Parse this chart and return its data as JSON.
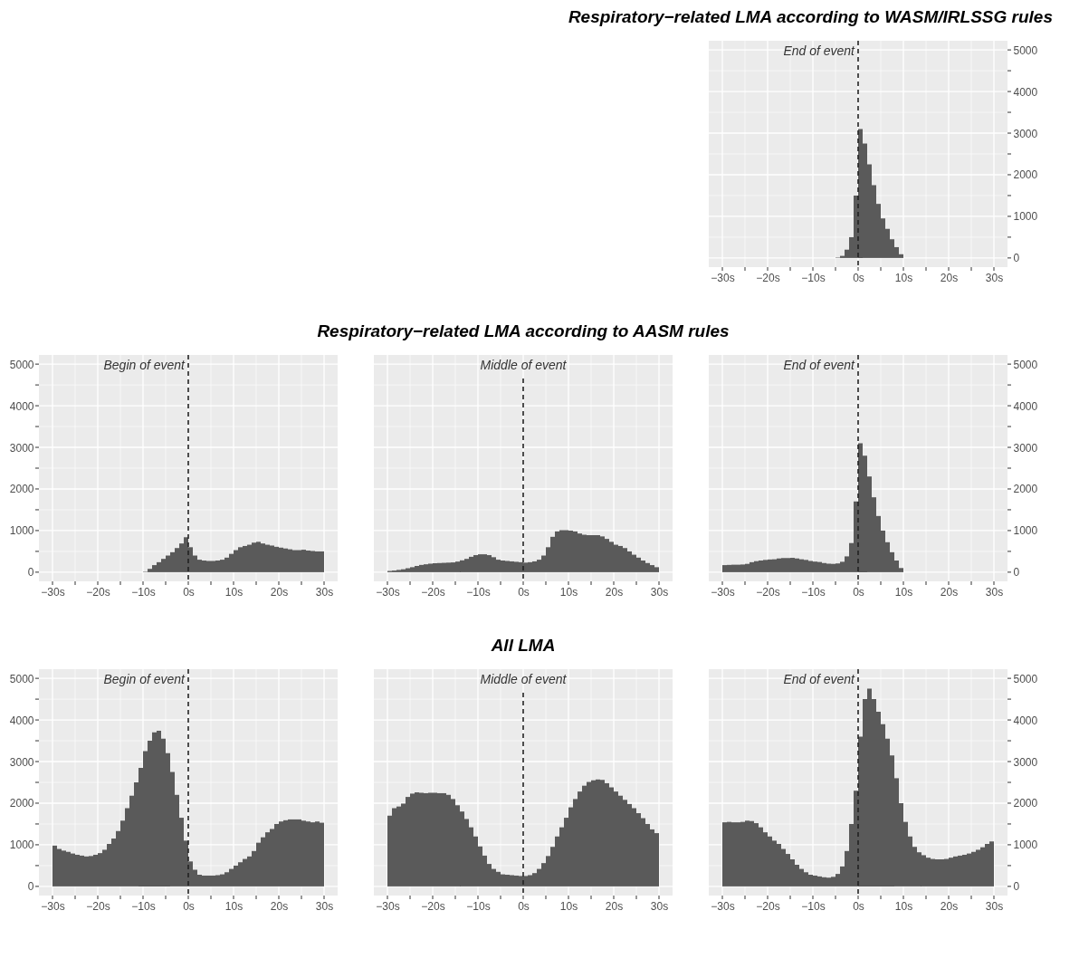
{
  "chart_data": [
    {
      "type": "histogram",
      "title": "Respiratory−related LMA according to WASM/IRLSSG rules",
      "color": "#5a5a5a",
      "xlim": [
        -33,
        33
      ],
      "ylim": [
        -220,
        5220
      ],
      "grid": true,
      "xticks": [
        {
          "value": -30,
          "label": "−30s"
        },
        {
          "value": -25,
          "label": null
        },
        {
          "value": -20,
          "label": "−20s"
        },
        {
          "value": -15,
          "label": null
        },
        {
          "value": -10,
          "label": "−10s"
        },
        {
          "value": -5,
          "label": null
        },
        {
          "value": 0,
          "label": "0s"
        },
        {
          "value": 5,
          "label": null
        },
        {
          "value": 10,
          "label": "10s"
        },
        {
          "value": 15,
          "label": null
        },
        {
          "value": 20,
          "label": "20s"
        },
        {
          "value": 25,
          "label": null
        },
        {
          "value": 30,
          "label": "30s"
        }
      ],
      "yticks": [
        0,
        {
          "value": 500,
          "label": null
        },
        1000,
        {
          "value": 1500,
          "label": null
        },
        2000,
        {
          "value": 2500,
          "label": null
        },
        3000,
        {
          "value": 3500,
          "label": null
        },
        4000,
        {
          "value": 4500,
          "label": null
        },
        5000
      ],
      "ref_lines": [
        {
          "axis": "x",
          "value": 0,
          "label": "End of event",
          "line_style": "dashed"
        }
      ],
      "bins": [
        -30,
        -29,
        -28,
        -27,
        -26,
        -25,
        -24,
        -23,
        -22,
        -21,
        -20,
        -19,
        -18,
        -17,
        -16,
        -15,
        -14,
        -13,
        -12,
        -11,
        -10,
        -9,
        -8,
        -7,
        -6,
        -5,
        -4,
        -3,
        -2,
        -1,
        0,
        1,
        2,
        3,
        4,
        5,
        6,
        7,
        8,
        9,
        10,
        11,
        12,
        13,
        14,
        15,
        16,
        17,
        18,
        19,
        20,
        21,
        22,
        23,
        24,
        25,
        26,
        27,
        28,
        29,
        30
      ],
      "values": [
        0,
        0,
        0,
        0,
        0,
        0,
        0,
        0,
        0,
        0,
        0,
        0,
        0,
        0,
        0,
        0,
        0,
        0,
        0,
        0,
        0,
        0,
        0,
        0,
        0,
        10,
        50,
        200,
        500,
        1500,
        3100,
        2750,
        2250,
        1750,
        1300,
        950,
        700,
        450,
        260,
        90,
        0,
        0,
        0,
        0,
        0,
        0,
        0,
        0,
        0,
        0,
        0,
        0,
        0,
        0,
        0,
        0,
        0,
        0,
        0,
        0
      ]
    },
    {
      "type": "histogram",
      "color": "#5a5a5a",
      "xlim": [
        -33,
        33
      ],
      "ylim": [
        -220,
        5220
      ],
      "grid": true,
      "xticks": [
        {
          "value": -30,
          "label": "−30s"
        },
        {
          "value": -25,
          "label": null
        },
        {
          "value": -20,
          "label": "−20s"
        },
        {
          "value": -15,
          "label": null
        },
        {
          "value": -10,
          "label": "−10s"
        },
        {
          "value": -5,
          "label": null
        },
        {
          "value": 0,
          "label": "0s"
        },
        {
          "value": 5,
          "label": null
        },
        {
          "value": 10,
          "label": "10s"
        },
        {
          "value": 15,
          "label": null
        },
        {
          "value": 20,
          "label": "20s"
        },
        {
          "value": 25,
          "label": null
        },
        {
          "value": 30,
          "label": "30s"
        }
      ],
      "yticks": [
        0,
        {
          "value": 500,
          "label": null
        },
        1000,
        {
          "value": 1500,
          "label": null
        },
        2000,
        {
          "value": 2500,
          "label": null
        },
        3000,
        {
          "value": 3500,
          "label": null
        },
        4000,
        {
          "value": 4500,
          "label": null
        },
        5000
      ],
      "ref_lines": [
        {
          "axis": "x",
          "value": 0,
          "label": "Begin of event",
          "line_style": "dashed"
        }
      ],
      "bins": [
        -30,
        -29,
        -28,
        -27,
        -26,
        -25,
        -24,
        -23,
        -22,
        -21,
        -20,
        -19,
        -18,
        -17,
        -16,
        -15,
        -14,
        -13,
        -12,
        -11,
        -10,
        -9,
        -8,
        -7,
        -6,
        -5,
        -4,
        -3,
        -2,
        -1,
        0,
        1,
        2,
        3,
        4,
        5,
        6,
        7,
        8,
        9,
        10,
        11,
        12,
        13,
        14,
        15,
        16,
        17,
        18,
        19,
        20,
        21,
        22,
        23,
        24,
        25,
        26,
        27,
        28,
        29,
        30
      ],
      "values": [
        0,
        0,
        0,
        0,
        0,
        0,
        0,
        0,
        0,
        0,
        0,
        0,
        0,
        0,
        0,
        0,
        0,
        0,
        0,
        0,
        10,
        80,
        170,
        240,
        320,
        400,
        480,
        580,
        690,
        840,
        600,
        400,
        300,
        280,
        270,
        270,
        280,
        300,
        350,
        440,
        530,
        600,
        630,
        660,
        710,
        730,
        690,
        660,
        640,
        610,
        590,
        570,
        550,
        530,
        530,
        540,
        520,
        510,
        500,
        500
      ]
    },
    {
      "type": "histogram",
      "title": "Respiratory−related LMA according to AASM rules",
      "color": "#5a5a5a",
      "xlim": [
        -33,
        33
      ],
      "ylim": [
        -220,
        5220
      ],
      "grid": true,
      "tick_labels": "x",
      "xticks": [
        {
          "value": -30,
          "label": "−30s"
        },
        {
          "value": -25,
          "label": null
        },
        {
          "value": -20,
          "label": "−20s"
        },
        {
          "value": -15,
          "label": null
        },
        {
          "value": -10,
          "label": "−10s"
        },
        {
          "value": -5,
          "label": null
        },
        {
          "value": 0,
          "label": "0s"
        },
        {
          "value": 5,
          "label": null
        },
        {
          "value": 10,
          "label": "10s"
        },
        {
          "value": 15,
          "label": null
        },
        {
          "value": 20,
          "label": "20s"
        },
        {
          "value": 25,
          "label": null
        },
        {
          "value": 30,
          "label": "30s"
        }
      ],
      "yticks": [
        0,
        {
          "value": 500,
          "label": null
        },
        1000,
        {
          "value": 1500,
          "label": null
        },
        2000,
        {
          "value": 2500,
          "label": null
        },
        3000,
        {
          "value": 3500,
          "label": null
        },
        4000,
        {
          "value": 4500,
          "label": null
        },
        5000
      ],
      "ref_lines": [
        {
          "axis": "x",
          "value": 0,
          "label": "Middle of event",
          "line_style": "dashed"
        }
      ],
      "bins": [
        -30,
        -29,
        -28,
        -27,
        -26,
        -25,
        -24,
        -23,
        -22,
        -21,
        -20,
        -19,
        -18,
        -17,
        -16,
        -15,
        -14,
        -13,
        -12,
        -11,
        -10,
        -9,
        -8,
        -7,
        -6,
        -5,
        -4,
        -3,
        -2,
        -1,
        0,
        1,
        2,
        3,
        4,
        5,
        6,
        7,
        8,
        9,
        10,
        11,
        12,
        13,
        14,
        15,
        16,
        17,
        18,
        19,
        20,
        21,
        22,
        23,
        24,
        25,
        26,
        27,
        28,
        29,
        30
      ],
      "values": [
        30,
        40,
        55,
        70,
        95,
        120,
        150,
        175,
        190,
        205,
        215,
        220,
        225,
        230,
        235,
        255,
        285,
        320,
        370,
        410,
        430,
        430,
        410,
        360,
        300,
        280,
        270,
        260,
        250,
        240,
        230,
        240,
        260,
        300,
        400,
        600,
        850,
        980,
        1010,
        1010,
        1000,
        980,
        930,
        900,
        890,
        890,
        890,
        860,
        800,
        730,
        660,
        630,
        580,
        500,
        420,
        350,
        280,
        220,
        170,
        120
      ]
    },
    {
      "type": "histogram",
      "color": "#5a5a5a",
      "xlim": [
        -33,
        33
      ],
      "ylim": [
        -220,
        5220
      ],
      "grid": true,
      "xticks": [
        {
          "value": -30,
          "label": "−30s"
        },
        {
          "value": -25,
          "label": null
        },
        {
          "value": -20,
          "label": "−20s"
        },
        {
          "value": -15,
          "label": null
        },
        {
          "value": -10,
          "label": "−10s"
        },
        {
          "value": -5,
          "label": null
        },
        {
          "value": 0,
          "label": "0s"
        },
        {
          "value": 5,
          "label": null
        },
        {
          "value": 10,
          "label": "10s"
        },
        {
          "value": 15,
          "label": null
        },
        {
          "value": 20,
          "label": "20s"
        },
        {
          "value": 25,
          "label": null
        },
        {
          "value": 30,
          "label": "30s"
        }
      ],
      "yticks": [
        0,
        {
          "value": 500,
          "label": null
        },
        1000,
        {
          "value": 1500,
          "label": null
        },
        2000,
        {
          "value": 2500,
          "label": null
        },
        3000,
        {
          "value": 3500,
          "label": null
        },
        4000,
        {
          "value": 4500,
          "label": null
        },
        5000
      ],
      "ref_lines": [
        {
          "axis": "x",
          "value": 0,
          "label": "End of event",
          "line_style": "dashed"
        }
      ],
      "bins": [
        -30,
        -29,
        -28,
        -27,
        -26,
        -25,
        -24,
        -23,
        -22,
        -21,
        -20,
        -19,
        -18,
        -17,
        -16,
        -15,
        -14,
        -13,
        -12,
        -11,
        -10,
        -9,
        -8,
        -7,
        -6,
        -5,
        -4,
        -3,
        -2,
        -1,
        0,
        1,
        2,
        3,
        4,
        5,
        6,
        7,
        8,
        9,
        10,
        11,
        12,
        13,
        14,
        15,
        16,
        17,
        18,
        19,
        20,
        21,
        22,
        23,
        24,
        25,
        26,
        27,
        28,
        29,
        30
      ],
      "values": [
        170,
        175,
        180,
        180,
        185,
        200,
        240,
        265,
        280,
        295,
        305,
        310,
        330,
        340,
        340,
        345,
        330,
        310,
        295,
        270,
        255,
        245,
        220,
        205,
        200,
        210,
        250,
        380,
        700,
        1700,
        3100,
        2800,
        2300,
        1800,
        1350,
        1000,
        720,
        480,
        280,
        100,
        0,
        0,
        0,
        0,
        0,
        0,
        0,
        0,
        0,
        0,
        0,
        0,
        0,
        0,
        0,
        0,
        0,
        0,
        0,
        0
      ]
    },
    {
      "type": "histogram",
      "color": "#5a5a5a",
      "xlim": [
        -33,
        33
      ],
      "ylim": [
        -220,
        5220
      ],
      "grid": true,
      "xticks": [
        {
          "value": -30,
          "label": "−30s"
        },
        {
          "value": -25,
          "label": null
        },
        {
          "value": -20,
          "label": "−20s"
        },
        {
          "value": -15,
          "label": null
        },
        {
          "value": -10,
          "label": "−10s"
        },
        {
          "value": -5,
          "label": null
        },
        {
          "value": 0,
          "label": "0s"
        },
        {
          "value": 5,
          "label": null
        },
        {
          "value": 10,
          "label": "10s"
        },
        {
          "value": 15,
          "label": null
        },
        {
          "value": 20,
          "label": "20s"
        },
        {
          "value": 25,
          "label": null
        },
        {
          "value": 30,
          "label": "30s"
        }
      ],
      "yticks": [
        0,
        {
          "value": 500,
          "label": null
        },
        1000,
        {
          "value": 1500,
          "label": null
        },
        2000,
        {
          "value": 2500,
          "label": null
        },
        3000,
        {
          "value": 3500,
          "label": null
        },
        4000,
        {
          "value": 4500,
          "label": null
        },
        5000
      ],
      "ref_lines": [
        {
          "axis": "x",
          "value": 0,
          "label": "Begin of event",
          "line_style": "dashed"
        }
      ],
      "bins": [
        -30,
        -29,
        -28,
        -27,
        -26,
        -25,
        -24,
        -23,
        -22,
        -21,
        -20,
        -19,
        -18,
        -17,
        -16,
        -15,
        -14,
        -13,
        -12,
        -11,
        -10,
        -9,
        -8,
        -7,
        -6,
        -5,
        -4,
        -3,
        -2,
        -1,
        0,
        1,
        2,
        3,
        4,
        5,
        6,
        7,
        8,
        9,
        10,
        11,
        12,
        13,
        14,
        15,
        16,
        17,
        18,
        19,
        20,
        21,
        22,
        23,
        24,
        25,
        26,
        27,
        28,
        29,
        30
      ],
      "values": [
        980,
        900,
        860,
        830,
        790,
        760,
        740,
        720,
        730,
        760,
        800,
        880,
        1020,
        1150,
        1330,
        1580,
        1880,
        2180,
        2500,
        2850,
        3250,
        3500,
        3700,
        3740,
        3550,
        3200,
        2750,
        2200,
        1650,
        1100,
        600,
        400,
        280,
        260,
        260,
        260,
        270,
        290,
        340,
        420,
        500,
        580,
        660,
        720,
        850,
        1050,
        1180,
        1300,
        1380,
        1500,
        1560,
        1590,
        1610,
        1610,
        1610,
        1580,
        1560,
        1540,
        1560,
        1530
      ]
    },
    {
      "type": "histogram",
      "title": "All LMA",
      "color": "#5a5a5a",
      "xlim": [
        -33,
        33
      ],
      "ylim": [
        -220,
        5220
      ],
      "grid": true,
      "tick_labels": "x",
      "xticks": [
        {
          "value": -30,
          "label": "−30s"
        },
        {
          "value": -25,
          "label": null
        },
        {
          "value": -20,
          "label": "−20s"
        },
        {
          "value": -15,
          "label": null
        },
        {
          "value": -10,
          "label": "−10s"
        },
        {
          "value": -5,
          "label": null
        },
        {
          "value": 0,
          "label": "0s"
        },
        {
          "value": 5,
          "label": null
        },
        {
          "value": 10,
          "label": "10s"
        },
        {
          "value": 15,
          "label": null
        },
        {
          "value": 20,
          "label": "20s"
        },
        {
          "value": 25,
          "label": null
        },
        {
          "value": 30,
          "label": "30s"
        }
      ],
      "yticks": [
        0,
        {
          "value": 500,
          "label": null
        },
        1000,
        {
          "value": 1500,
          "label": null
        },
        2000,
        {
          "value": 2500,
          "label": null
        },
        3000,
        {
          "value": 3500,
          "label": null
        },
        4000,
        {
          "value": 4500,
          "label": null
        },
        5000
      ],
      "ref_lines": [
        {
          "axis": "x",
          "value": 0,
          "label": "Middle of event",
          "line_style": "dashed"
        }
      ],
      "bins": [
        -30,
        -29,
        -28,
        -27,
        -26,
        -25,
        -24,
        -23,
        -22,
        -21,
        -20,
        -19,
        -18,
        -17,
        -16,
        -15,
        -14,
        -13,
        -12,
        -11,
        -10,
        -9,
        -8,
        -7,
        -6,
        -5,
        -4,
        -3,
        -2,
        -1,
        0,
        1,
        2,
        3,
        4,
        5,
        6,
        7,
        8,
        9,
        10,
        11,
        12,
        13,
        14,
        15,
        16,
        17,
        18,
        19,
        20,
        21,
        22,
        23,
        24,
        25,
        26,
        27,
        28,
        29,
        30
      ],
      "values": [
        1700,
        1880,
        1920,
        1990,
        2150,
        2230,
        2260,
        2250,
        2240,
        2250,
        2250,
        2240,
        2240,
        2200,
        2100,
        1950,
        1800,
        1620,
        1420,
        1200,
        960,
        740,
        540,
        420,
        350,
        290,
        280,
        270,
        260,
        250,
        250,
        270,
        320,
        420,
        560,
        730,
        950,
        1200,
        1420,
        1650,
        1900,
        2100,
        2280,
        2420,
        2510,
        2550,
        2570,
        2560,
        2480,
        2380,
        2280,
        2180,
        2080,
        1980,
        1880,
        1760,
        1640,
        1500,
        1370,
        1280
      ]
    },
    {
      "type": "histogram",
      "color": "#5a5a5a",
      "xlim": [
        -33,
        33
      ],
      "ylim": [
        -220,
        5220
      ],
      "grid": true,
      "xticks": [
        {
          "value": -30,
          "label": "−30s"
        },
        {
          "value": -25,
          "label": null
        },
        {
          "value": -20,
          "label": "−20s"
        },
        {
          "value": -15,
          "label": null
        },
        {
          "value": -10,
          "label": "−10s"
        },
        {
          "value": -5,
          "label": null
        },
        {
          "value": 0,
          "label": "0s"
        },
        {
          "value": 5,
          "label": null
        },
        {
          "value": 10,
          "label": "10s"
        },
        {
          "value": 15,
          "label": null
        },
        {
          "value": 20,
          "label": "20s"
        },
        {
          "value": 25,
          "label": null
        },
        {
          "value": 30,
          "label": "30s"
        }
      ],
      "yticks": [
        0,
        {
          "value": 500,
          "label": null
        },
        1000,
        {
          "value": 1500,
          "label": null
        },
        2000,
        {
          "value": 2500,
          "label": null
        },
        3000,
        {
          "value": 3500,
          "label": null
        },
        4000,
        {
          "value": 4500,
          "label": null
        },
        5000
      ],
      "ref_lines": [
        {
          "axis": "x",
          "value": 0,
          "label": "End of event",
          "line_style": "dashed"
        }
      ],
      "bins": [
        -30,
        -29,
        -28,
        -27,
        -26,
        -25,
        -24,
        -23,
        -22,
        -21,
        -20,
        -19,
        -18,
        -17,
        -16,
        -15,
        -14,
        -13,
        -12,
        -11,
        -10,
        -9,
        -8,
        -7,
        -6,
        -5,
        -4,
        -3,
        -2,
        -1,
        0,
        1,
        2,
        3,
        4,
        5,
        6,
        7,
        8,
        9,
        10,
        11,
        12,
        13,
        14,
        15,
        16,
        17,
        18,
        19,
        20,
        21,
        22,
        23,
        24,
        25,
        26,
        27,
        28,
        29,
        30
      ],
      "values": [
        1540,
        1550,
        1540,
        1540,
        1550,
        1580,
        1570,
        1520,
        1420,
        1300,
        1200,
        1100,
        1020,
        900,
        780,
        650,
        520,
        420,
        340,
        280,
        260,
        240,
        220,
        210,
        230,
        300,
        480,
        850,
        1500,
        2300,
        3600,
        4500,
        4750,
        4500,
        4200,
        3900,
        3550,
        3150,
        2600,
        2000,
        1550,
        1200,
        950,
        820,
        750,
        690,
        660,
        650,
        650,
        660,
        690,
        720,
        740,
        760,
        790,
        830,
        880,
        940,
        1020,
        1080
      ]
    }
  ]
}
